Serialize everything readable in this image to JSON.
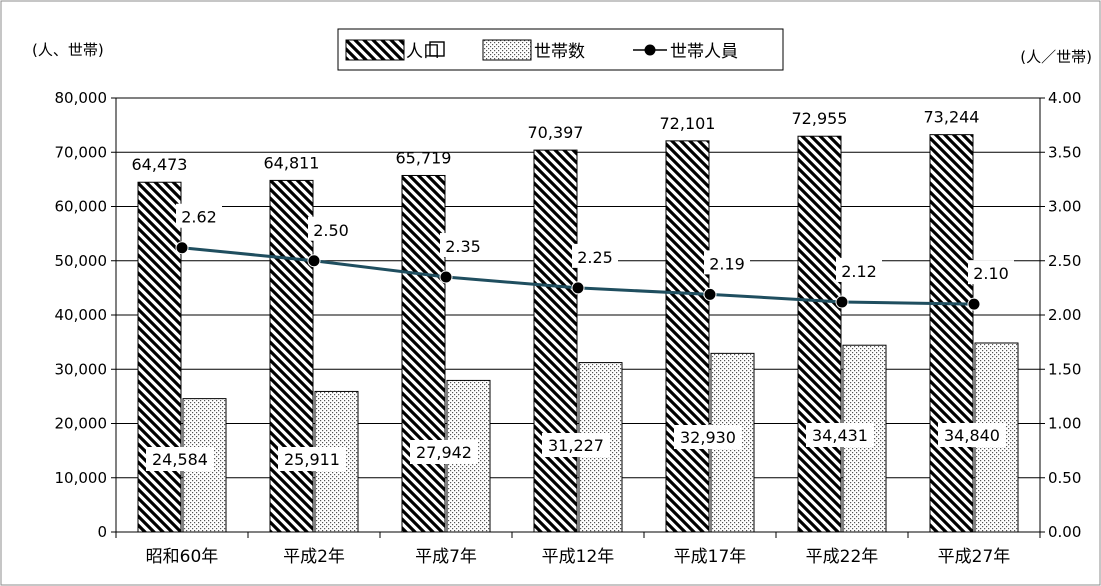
{
  "chart_data": {
    "type": "bar",
    "categories": [
      "昭和60年",
      "平成2年",
      "平成7年",
      "平成12年",
      "平成17年",
      "平成22年",
      "平成27年"
    ],
    "series": [
      {
        "name": "人口",
        "kind": "bar",
        "axis": "left",
        "pattern": "diagonal-hatch",
        "values": [
          64473,
          64811,
          65719,
          70397,
          72101,
          72955,
          73244
        ],
        "labels": [
          "64,473",
          "64,811",
          "65,719",
          "70,397",
          "72,101",
          "72,955",
          "73,244"
        ]
      },
      {
        "name": "世帯数",
        "kind": "bar",
        "axis": "left",
        "pattern": "dots",
        "values": [
          24584,
          25911,
          27942,
          31227,
          32930,
          34431,
          34840
        ],
        "labels": [
          "24,584",
          "25,911",
          "27,942",
          "31,227",
          "32,930",
          "34,431",
          "34,840"
        ]
      },
      {
        "name": "世帯人員",
        "kind": "line",
        "axis": "right",
        "color": "#1f4e5f",
        "values": [
          2.62,
          2.5,
          2.35,
          2.25,
          2.19,
          2.12,
          2.1
        ],
        "labels": [
          "2.62",
          "2.50",
          "2.35",
          "2.25",
          "2.19",
          "2.12",
          "2.10"
        ]
      }
    ],
    "ylabel_left": "(人、世帯)",
    "ylabel_right": "(人／世帯)",
    "ylim_left": [
      0,
      80000
    ],
    "ylim_right": [
      0,
      4.0
    ],
    "yticks_left": [
      "0",
      "10,000",
      "20,000",
      "30,000",
      "40,000",
      "50,000",
      "60,000",
      "70,000",
      "80,000"
    ],
    "yticks_right": [
      "0.00",
      "0.50",
      "1.00",
      "1.50",
      "2.00",
      "2.50",
      "3.00",
      "3.50",
      "4.00"
    ],
    "grid": true,
    "legend_position": "top-center"
  }
}
